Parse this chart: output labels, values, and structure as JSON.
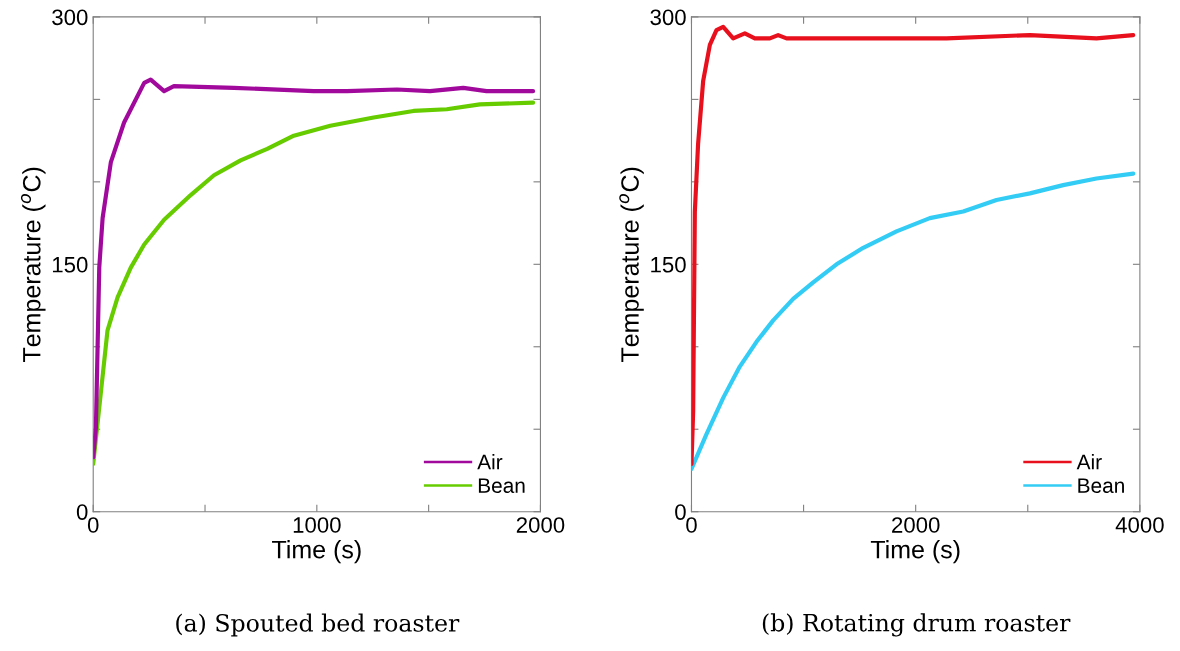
{
  "chart_data": [
    {
      "type": "line",
      "xlabel": "Time (s)",
      "ylabel": "Temperature ($^{o}$C)",
      "annotations": [
        "(a) Spouted bed roaster"
      ],
      "xlim": [
        0,
        2000
      ],
      "xticks": [
        0,
        {
          "value": 500,
          "label": null
        },
        1000,
        {
          "value": 1500,
          "label": null
        },
        2000
      ],
      "ylim": [
        0,
        300
      ],
      "yticks": [
        0,
        {
          "value": 50,
          "label": null
        },
        {
          "value": 100,
          "label": null
        },
        150,
        {
          "value": 200,
          "label": null
        },
        {
          "value": 250,
          "label": null
        },
        300
      ],
      "grid": false,
      "legend": "bottom right",
      "line_style": "solid",
      "series": [
        {
          "name": "Air",
          "color": "#a0099b",
          "x": [
            0,
            12,
            27,
            42,
            79,
            138,
            228,
            257,
            317,
            361,
            629,
            986,
            1135,
            1358,
            1506,
            1655,
            1759,
            1967
          ],
          "values": [
            33,
            51,
            148,
            178,
            212,
            236,
            260,
            262,
            255,
            258,
            257,
            255,
            255,
            256,
            255,
            257,
            255,
            255
          ]
        },
        {
          "name": "Bean",
          "color": "#66cc00",
          "x": [
            0,
            64,
            109,
            168,
            228,
            317,
            436,
            540,
            659,
            778,
            897,
            1060,
            1254,
            1432,
            1581,
            1729,
            1967
          ],
          "values": [
            29,
            110,
            130,
            148,
            162,
            177,
            192,
            204,
            213,
            220,
            228,
            234,
            239,
            243,
            244,
            247,
            248
          ]
        }
      ]
    },
    {
      "type": "line",
      "xlabel": "Time (s)",
      "ylabel": "Temperature ($^{o}$C)",
      "annotations": [
        "(b) Rotating drum roaster"
      ],
      "xlim": [
        0,
        4000
      ],
      "xticks": [
        0,
        {
          "value": 1000,
          "label": null
        },
        2000,
        {
          "value": 3000,
          "label": null
        },
        4000
      ],
      "ylim": [
        0,
        300
      ],
      "yticks": [
        0,
        {
          "value": 50,
          "label": null
        },
        {
          "value": 100,
          "label": null
        },
        150,
        {
          "value": 200,
          "label": null
        },
        {
          "value": 250,
          "label": null
        },
        300
      ],
      "grid": false,
      "legend": "bottom right",
      "line_style": "solid",
      "series": [
        {
          "name": "Air",
          "color": "#e8101c",
          "x": [
            0,
            15,
            30,
            59,
            104,
            164,
            223,
            283,
            372,
            476,
            565,
            699,
            773,
            848,
            1383,
            2275,
            3019,
            3613,
            3941
          ],
          "values": [
            29,
            61,
            182,
            223,
            261,
            283,
            292,
            294,
            287,
            290,
            287,
            287,
            289,
            287,
            287,
            287,
            289,
            287,
            289
          ]
        },
        {
          "name": "Bean",
          "color": "#33ccf5",
          "x": [
            0,
            134,
            283,
            431,
            580,
            729,
            907,
            1086,
            1294,
            1532,
            1829,
            2126,
            2424,
            2721,
            3019,
            3316,
            3613,
            3941
          ],
          "values": [
            26,
            47,
            69,
            88,
            103,
            116,
            129,
            139,
            150,
            160,
            170,
            178,
            182,
            189,
            193,
            198,
            202,
            205
          ]
        }
      ]
    }
  ]
}
